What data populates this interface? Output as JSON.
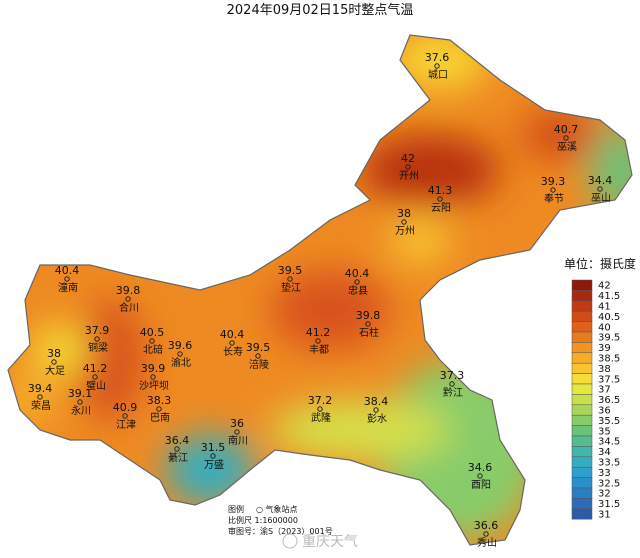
{
  "title": "2024年09月02日15时整点气温",
  "stations": [
    {
      "name": "城口",
      "temp": 37.6
    },
    {
      "name": "巫溪",
      "temp": 40.7
    },
    {
      "name": "开州",
      "temp": 42
    },
    {
      "name": "云阳",
      "temp": 41.3
    },
    {
      "name": "巫山",
      "temp": 34.4
    },
    {
      "name": "奉节",
      "temp": 39.3
    },
    {
      "name": "万州",
      "temp": 38
    },
    {
      "name": "潼南",
      "temp": 40.4
    },
    {
      "name": "垫江",
      "temp": 39.5
    },
    {
      "name": "忠县",
      "temp": 40.4
    },
    {
      "name": "合川",
      "temp": 39.8
    },
    {
      "name": "铜梁",
      "temp": 37.9
    },
    {
      "name": "北碚",
      "temp": 40.5
    },
    {
      "name": "渝北",
      "temp": 39.6
    },
    {
      "name": "长寿",
      "temp": 40.4
    },
    {
      "name": "涪陵",
      "temp": 39.5
    },
    {
      "name": "丰都",
      "temp": 41.2
    },
    {
      "name": "石柱",
      "temp": 39.8
    },
    {
      "name": "大足",
      "temp": 38
    },
    {
      "name": "璧山",
      "temp": 41.2
    },
    {
      "name": "沙坪坝",
      "temp": 39.9
    },
    {
      "name": "黔江",
      "temp": 37.3
    },
    {
      "name": "荣昌",
      "temp": 39.4
    },
    {
      "name": "永川",
      "temp": 39.1
    },
    {
      "name": "巴南",
      "temp": 38.3
    },
    {
      "name": "武隆",
      "temp": 37.2
    },
    {
      "name": "彭水",
      "temp": 38.4
    },
    {
      "name": "江津",
      "temp": 40.9
    },
    {
      "name": "南川",
      "temp": 36
    },
    {
      "name": "綦江",
      "temp": 36.4
    },
    {
      "name": "万盛",
      "temp": 31.5
    },
    {
      "name": "酉阳",
      "temp": 34.6
    },
    {
      "name": "秀山",
      "temp": 36.6
    }
  ],
  "legend": {
    "title": "单位：摄氏度",
    "levels": [
      42,
      41.5,
      41,
      40.5,
      40,
      39.5,
      39,
      38.5,
      38,
      37.5,
      37,
      36.5,
      36,
      35.5,
      35,
      34.5,
      34,
      33.5,
      33,
      32.5,
      32,
      31.5,
      31
    ],
    "colors": [
      "#8b1a0e",
      "#a52a12",
      "#c03a14",
      "#d24c16",
      "#e0601a",
      "#ea7a1e",
      "#f09424",
      "#f5ad2a",
      "#f8c530",
      "#f5dc36",
      "#e6e83c",
      "#c8e04a",
      "#a8d65a",
      "#88cc6a",
      "#6cc27a",
      "#55bc92",
      "#42b6ac",
      "#35adc0",
      "#2ea0cc",
      "#2a90cc",
      "#2a7ec4",
      "#2c6cb8",
      "#2e5aa8"
    ]
  },
  "footer": {
    "legend_label": "图例",
    "legend_item": "○ 气象站点",
    "scale": "比例尺  1:1600000",
    "approval": "审图号：渝S（2023）001号"
  },
  "watermark": "重庆天气"
}
